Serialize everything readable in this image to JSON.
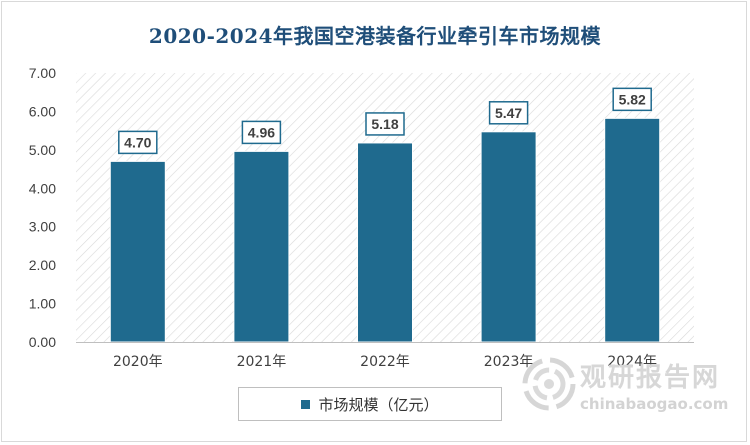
{
  "chart_data": {
    "type": "bar",
    "title": "2020-2024年我国空港装备行业牵引车市场规模",
    "categories": [
      "2020年",
      "2021年",
      "2022年",
      "2023年",
      "2024年"
    ],
    "series": [
      {
        "name": "市场规模（亿元）",
        "values": [
          4.7,
          4.96,
          5.18,
          5.47,
          5.82
        ]
      }
    ],
    "data_labels": [
      "4.70",
      "4.96",
      "5.18",
      "5.47",
      "5.82"
    ],
    "y_ticks": [
      "0.00",
      "1.00",
      "2.00",
      "3.00",
      "4.00",
      "5.00",
      "6.00",
      "7.00"
    ],
    "ylim": [
      0,
      7
    ],
    "xlabel": "",
    "ylabel": "",
    "legend_position": "bottom-center",
    "bar_color": "#1f6a8e",
    "label_color": "#1f6a8e"
  },
  "watermark": {
    "brand_cn": "观研报告网",
    "brand_en": "chinabaogao.com",
    "logo_icon": "globe-swirl-icon",
    "color": "#d0d0d0"
  }
}
